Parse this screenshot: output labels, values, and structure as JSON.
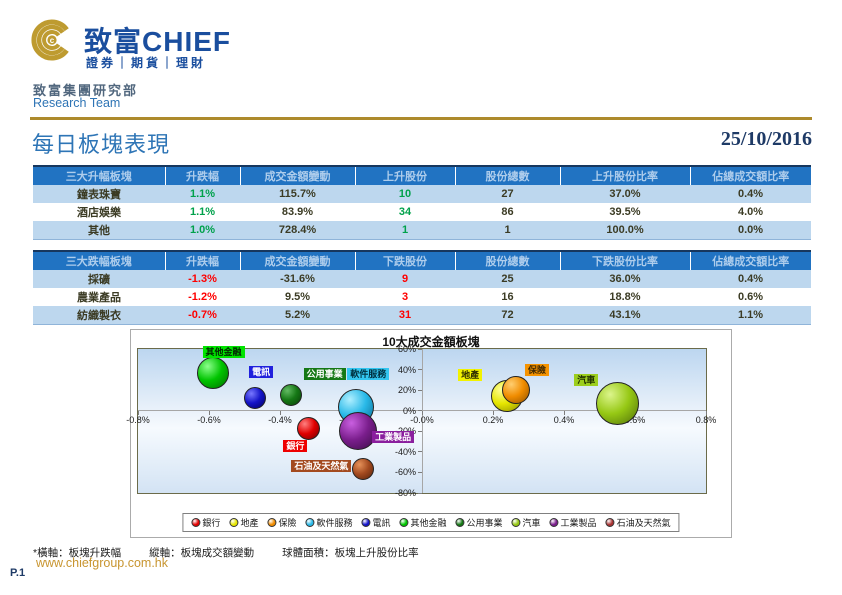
{
  "header": {
    "logo_cn": "致富",
    "logo_en": "CHIEF",
    "tagline": "證券｜期貨｜理財",
    "dept_cn": "致富集團研究部",
    "dept_en": "Research Team",
    "gold_color": "#BE9B30",
    "blue_color": "#1A4E9E"
  },
  "title": "每日板塊表現",
  "date": "25/10/2016",
  "tables": [
    {
      "headers": [
        "三大升幅板塊",
        "升跌幅",
        "成交金額變動",
        "上升股份",
        "股份總數",
        "上升股份比率",
        "佔總成交額比率"
      ],
      "accent_cols": [
        1,
        3
      ],
      "accent_color": "#00A14B",
      "rows": [
        [
          "鐘表珠寶",
          "1.1%",
          "115.7%",
          "10",
          "27",
          "37.0%",
          "0.4%"
        ],
        [
          "酒店娛樂",
          "1.1%",
          "83.9%",
          "34",
          "86",
          "39.5%",
          "4.0%"
        ],
        [
          "其他",
          "1.0%",
          "728.4%",
          "1",
          "1",
          "100.0%",
          "0.0%"
        ]
      ]
    },
    {
      "headers": [
        "三大跌幅板塊",
        "升跌幅",
        "成交金額變動",
        "下跌股份",
        "股份總數",
        "下跌股份比率",
        "佔總成交額比率"
      ],
      "accent_cols": [
        1,
        3
      ],
      "accent_color": "#FF0000",
      "rows": [
        [
          "採礦",
          "-1.3%",
          "-31.6%",
          "9",
          "25",
          "36.0%",
          "0.4%"
        ],
        [
          "農業產品",
          "-1.2%",
          "9.5%",
          "3",
          "16",
          "18.8%",
          "0.6%"
        ],
        [
          "紡織製衣",
          "-0.7%",
          "5.2%",
          "31",
          "72",
          "43.1%",
          "1.1%"
        ]
      ]
    }
  ],
  "chart_data": {
    "type": "bubble",
    "title": "10大成交金額板塊",
    "x_axis_note": "板塊升跌幅",
    "y_axis_note": "板塊成交額變動",
    "size_note": "板塊上升股份比率",
    "xlim": [
      -0.8,
      0.8
    ],
    "ylim": [
      -80,
      60
    ],
    "x_tick_step": 0.2,
    "y_tick_step": 20,
    "x_tick_suffix": "%",
    "grid": false,
    "legend_position": "bottom",
    "series": [
      {
        "name": "其他金融",
        "x": -0.59,
        "y": 37,
        "r": 16,
        "color": "#00C400",
        "hi": "#8CFF8C",
        "lo": "#006E00",
        "label_bg": "#00E400",
        "label_fg": "#002800",
        "dx": 11,
        "dy": -21
      },
      {
        "name": "電訊",
        "x": -0.47,
        "y": 12,
        "r": 11,
        "color": "#1414C8",
        "hi": "#7878FF",
        "lo": "#000060",
        "label_bg": "#2020DD",
        "label_fg": "#FFFFFF",
        "dx": 6,
        "dy": -26
      },
      {
        "name": "公用事業",
        "x": -0.37,
        "y": 15,
        "r": 11,
        "color": "#157815",
        "hi": "#63BB63",
        "lo": "#083D08",
        "label_bg": "#157815",
        "label_fg": "#FFFFFF",
        "dx": 34,
        "dy": -21
      },
      {
        "name": "銀行",
        "x": -0.32,
        "y": -17,
        "r": 11.5,
        "color": "#E00000",
        "hi": "#FF8080",
        "lo": "#700000",
        "label_bg": "#EE0000",
        "label_fg": "#FFFFFF",
        "dx": -13,
        "dy": 18
      },
      {
        "name": "軟件服務",
        "x": -0.185,
        "y": 4,
        "r": 18,
        "color": "#29B9E8",
        "hi": "#B0EFFF",
        "lo": "#08688F",
        "label_bg": "#33C6F0",
        "label_fg": "#00303F",
        "dx": 12,
        "dy": -33
      },
      {
        "name": "工業製品",
        "x": -0.18,
        "y": -20,
        "r": 19,
        "color": "#7A1E8C",
        "hi": "#C95FE0",
        "lo": "#3A0D45",
        "label_bg": "#8A1F9E",
        "label_fg": "#FFFFFF",
        "dx": 35,
        "dy": 6
      },
      {
        "name": "石油及天然氣",
        "x": -0.165,
        "y": -57,
        "r": 11,
        "color": "#A34A1F",
        "hi": "#E6925A",
        "lo": "#55230C",
        "label_bg": "#A34A1F",
        "label_fg": "#FFFFFF",
        "dx": -42,
        "dy": -3
      },
      {
        "name": "地產",
        "x": 0.24,
        "y": 14,
        "r": 16,
        "color": "#E6E600",
        "hi": "#FFFFA0",
        "lo": "#8A8A00",
        "label_bg": "#F2F200",
        "label_fg": "#303000",
        "dx": -37,
        "dy": -21
      },
      {
        "name": "保險",
        "x": 0.265,
        "y": 20,
        "r": 14,
        "color": "#F08C00",
        "hi": "#FFCE70",
        "lo": "#8F5200",
        "label_bg": "#F59300",
        "label_fg": "#402800",
        "dx": 21,
        "dy": -20
      },
      {
        "name": "汽車",
        "x": 0.55,
        "y": 7,
        "r": 21.5,
        "color": "#96C814",
        "hi": "#DCF58C",
        "lo": "#50700A",
        "label_bg": "#9CCE1E",
        "label_fg": "#203000",
        "dx": -31,
        "dy": -24
      }
    ],
    "legend": [
      {
        "name": "銀行",
        "color": "#E00000"
      },
      {
        "name": "地產",
        "color": "#E6E600"
      },
      {
        "name": "保險",
        "color": "#F08C00"
      },
      {
        "name": "軟件服務",
        "color": "#29B9E8"
      },
      {
        "name": "電訊",
        "color": "#1414C8"
      },
      {
        "name": "其他金融",
        "color": "#00C400"
      },
      {
        "name": "公用事業",
        "color": "#157815"
      },
      {
        "name": "汽車",
        "color": "#96C814"
      },
      {
        "name": "工業製品",
        "color": "#7A1E8C"
      },
      {
        "name": "石油及天然氣",
        "color": "#A83232"
      }
    ]
  },
  "footnote": {
    "part1": "*橫軸：板塊升跌幅",
    "part2": "縱軸：板塊成交額變動",
    "part3": "球體面積：板塊上升股份比率"
  },
  "footer": {
    "url": "www.chiefgroup.com.hk",
    "page_number": "P.1"
  }
}
